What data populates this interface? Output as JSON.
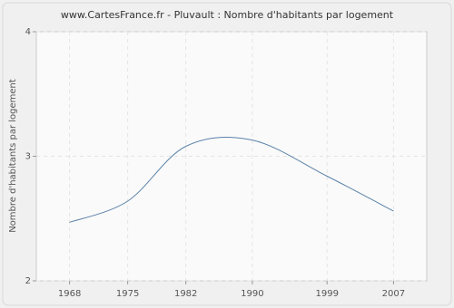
{
  "chart_data": {
    "type": "line",
    "title": "www.CartesFrance.fr - Pluvault : Nombre d'habitants par logement",
    "y_label": "Nombre d'habitants par logement",
    "x": [
      1968,
      1975,
      1982,
      1990,
      1999,
      2007
    ],
    "series": [
      {
        "name": "Nombre d'habitants par logement",
        "color": "#5b82a8",
        "values": [
          2.47,
          2.64,
          3.08,
          3.13,
          2.84,
          2.56
        ]
      }
    ],
    "xlim": [
      1964,
      2011
    ],
    "xticks": [
      1968,
      1975,
      1982,
      1990,
      1999,
      2007
    ],
    "ylim": [
      2,
      4
    ],
    "yticks": [
      2,
      3,
      4
    ],
    "grid": true
  }
}
